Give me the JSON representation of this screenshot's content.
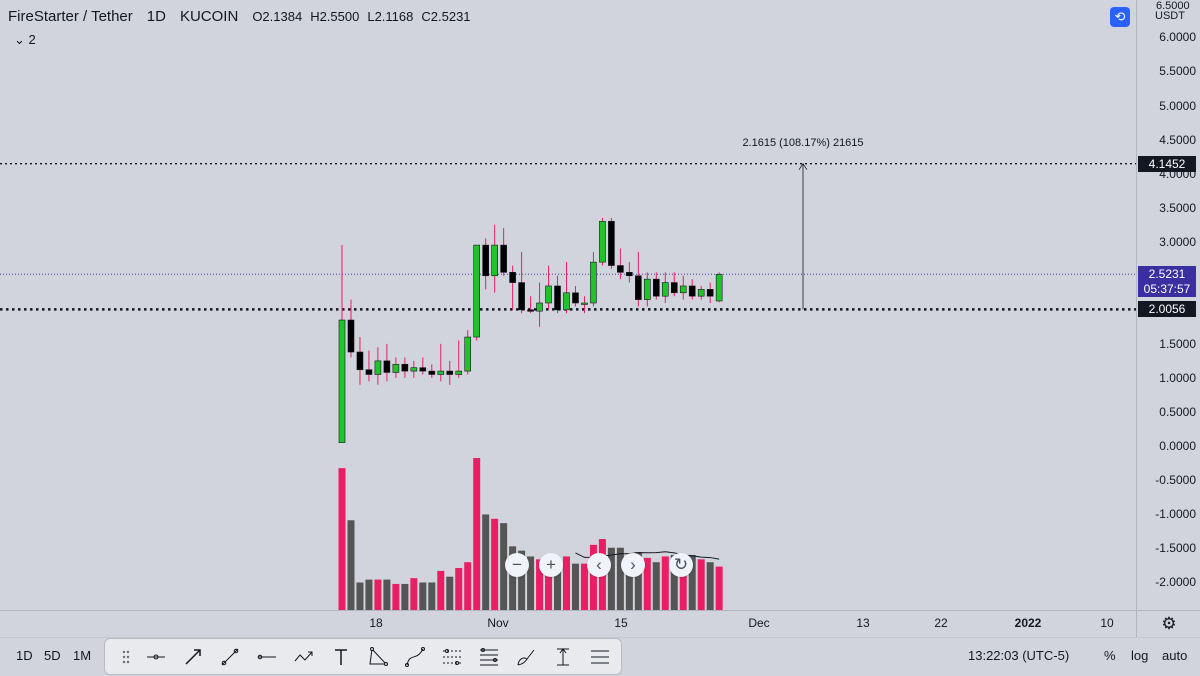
{
  "header": {
    "symbol": "FireStarter / Tether",
    "interval": "1D",
    "exchange": "KUCOIN",
    "ohlc": {
      "o": "O2.1384",
      "h": "H2.5500",
      "l": "L2.1168",
      "c": "C2.5231"
    },
    "indicator_count": "2"
  },
  "price_axis": {
    "currency": "USDT",
    "top_label": "6.5000",
    "labels": [
      "6.0000",
      "5.5000",
      "5.0000",
      "4.5000",
      "4.0000",
      "3.5000",
      "3.0000",
      "2.5000",
      "2.0000",
      "1.5000",
      "1.0000",
      "0.5000",
      "0.0000",
      "-0.5000",
      "-1.0000",
      "-1.5000",
      "-2.0000"
    ],
    "tags": {
      "level_upper": "4.1452",
      "last_price": "2.5231",
      "countdown": "05:37:57",
      "level_lower": "2.0056"
    }
  },
  "measure": {
    "text": "2.1615 (108.17%) 21615"
  },
  "time_axis": {
    "labels": [
      {
        "text": "18",
        "bold": false
      },
      {
        "text": "Nov",
        "bold": false
      },
      {
        "text": "15",
        "bold": false
      },
      {
        "text": "Dec",
        "bold": false
      },
      {
        "text": "13",
        "bold": false
      },
      {
        "text": "22",
        "bold": false
      },
      {
        "text": "2022",
        "bold": true
      },
      {
        "text": "10",
        "bold": false
      }
    ]
  },
  "colors": {
    "up": "#22c32a",
    "down": "#000000",
    "wick_up": "#e91e63",
    "volume_up": "#e91e63",
    "volume_down": "#555555",
    "accent": "#2962ff",
    "last_price_tag": "#3a2fa0"
  },
  "bottom_bar": {
    "timeframes": [
      "1D",
      "5D",
      "1M"
    ],
    "clock": "13:22:03 (UTC-5)",
    "percent": "%",
    "log": "log",
    "auto": "auto"
  },
  "toolbar": {
    "tools": [
      "drag-handle-icon",
      "horizontal-ray-icon",
      "arrow-line-icon",
      "trend-line-icon",
      "horizontal-line-icon",
      "path-icon",
      "text-icon",
      "triangle-icon",
      "curve-icon",
      "pitchfork-icon",
      "fib-retracement-icon",
      "brush-icon",
      "price-range-icon",
      "gann-box-icon"
    ]
  },
  "chart_data": {
    "type": "candlestick",
    "ylim": [
      -2.3,
      6.5
    ],
    "candles": [
      {
        "o": 0.05,
        "h": 2.95,
        "l": 0.05,
        "c": 1.85,
        "v": 0.98
      },
      {
        "o": 1.85,
        "h": 2.15,
        "l": 1.3,
        "c": 1.38,
        "v": 0.62
      },
      {
        "o": 1.38,
        "h": 1.6,
        "l": 0.9,
        "c": 1.12,
        "v": 0.19
      },
      {
        "o": 1.12,
        "h": 1.4,
        "l": 0.95,
        "c": 1.05,
        "v": 0.21
      },
      {
        "o": 1.05,
        "h": 1.45,
        "l": 0.9,
        "c": 1.25,
        "v": 0.21
      },
      {
        "o": 1.25,
        "h": 1.5,
        "l": 0.95,
        "c": 1.08,
        "v": 0.21
      },
      {
        "o": 1.08,
        "h": 1.3,
        "l": 1.0,
        "c": 1.2,
        "v": 0.18
      },
      {
        "o": 1.2,
        "h": 1.3,
        "l": 1.0,
        "c": 1.1,
        "v": 0.18
      },
      {
        "o": 1.1,
        "h": 1.25,
        "l": 1.0,
        "c": 1.15,
        "v": 0.22
      },
      {
        "o": 1.15,
        "h": 1.3,
        "l": 1.05,
        "c": 1.1,
        "v": 0.19
      },
      {
        "o": 1.1,
        "h": 1.2,
        "l": 1.0,
        "c": 1.05,
        "v": 0.19
      },
      {
        "o": 1.05,
        "h": 1.5,
        "l": 0.95,
        "c": 1.1,
        "v": 0.27
      },
      {
        "o": 1.1,
        "h": 1.25,
        "l": 0.9,
        "c": 1.05,
        "v": 0.23
      },
      {
        "o": 1.05,
        "h": 1.55,
        "l": 1.0,
        "c": 1.1,
        "v": 0.29
      },
      {
        "o": 1.1,
        "h": 1.7,
        "l": 1.05,
        "c": 1.6,
        "v": 0.33
      },
      {
        "o": 1.6,
        "h": 2.95,
        "l": 1.55,
        "c": 2.95,
        "v": 1.05
      },
      {
        "o": 2.95,
        "h": 3.05,
        "l": 2.3,
        "c": 2.5,
        "v": 0.66
      },
      {
        "o": 2.5,
        "h": 3.25,
        "l": 2.25,
        "c": 2.95,
        "v": 0.63
      },
      {
        "o": 2.95,
        "h": 3.2,
        "l": 2.5,
        "c": 2.55,
        "v": 0.6
      },
      {
        "o": 2.55,
        "h": 2.65,
        "l": 2.0,
        "c": 2.4,
        "v": 0.44
      },
      {
        "o": 2.4,
        "h": 2.85,
        "l": 1.95,
        "c": 2.0,
        "v": 0.41
      },
      {
        "o": 2.0,
        "h": 2.2,
        "l": 1.95,
        "c": 1.98,
        "v": 0.37
      },
      {
        "o": 1.98,
        "h": 2.4,
        "l": 1.75,
        "c": 2.1,
        "v": 0.35
      },
      {
        "o": 2.1,
        "h": 2.65,
        "l": 2.0,
        "c": 2.35,
        "v": 0.36
      },
      {
        "o": 2.35,
        "h": 2.5,
        "l": 1.95,
        "c": 2.0,
        "v": 0.33
      },
      {
        "o": 2.0,
        "h": 2.7,
        "l": 1.95,
        "c": 2.25,
        "v": 0.37
      },
      {
        "o": 2.25,
        "h": 2.35,
        "l": 2.05,
        "c": 2.1,
        "v": 0.32
      },
      {
        "o": 2.1,
        "h": 2.2,
        "l": 1.95,
        "c": 2.1,
        "v": 0.32
      },
      {
        "o": 2.1,
        "h": 2.85,
        "l": 2.05,
        "c": 2.7,
        "v": 0.45
      },
      {
        "o": 2.7,
        "h": 3.35,
        "l": 2.65,
        "c": 3.3,
        "v": 0.49
      },
      {
        "o": 3.3,
        "h": 3.35,
        "l": 2.6,
        "c": 2.65,
        "v": 0.43
      },
      {
        "o": 2.65,
        "h": 2.9,
        "l": 2.45,
        "c": 2.55,
        "v": 0.43
      },
      {
        "o": 2.55,
        "h": 2.7,
        "l": 2.4,
        "c": 2.5,
        "v": 0.36
      },
      {
        "o": 2.5,
        "h": 2.85,
        "l": 2.05,
        "c": 2.15,
        "v": 0.4
      },
      {
        "o": 2.15,
        "h": 2.55,
        "l": 2.05,
        "c": 2.45,
        "v": 0.36
      },
      {
        "o": 2.45,
        "h": 2.55,
        "l": 2.15,
        "c": 2.2,
        "v": 0.33
      },
      {
        "o": 2.2,
        "h": 2.55,
        "l": 2.1,
        "c": 2.4,
        "v": 0.37
      },
      {
        "o": 2.4,
        "h": 2.55,
        "l": 2.2,
        "c": 2.25,
        "v": 0.38
      },
      {
        "o": 2.25,
        "h": 2.5,
        "l": 2.15,
        "c": 2.35,
        "v": 0.36
      },
      {
        "o": 2.35,
        "h": 2.45,
        "l": 2.15,
        "c": 2.2,
        "v": 0.38
      },
      {
        "o": 2.2,
        "h": 2.35,
        "l": 2.15,
        "c": 2.3,
        "v": 0.35
      },
      {
        "o": 2.3,
        "h": 2.4,
        "l": 2.1,
        "c": 2.2,
        "v": 0.33
      },
      {
        "o": 2.13,
        "h": 2.55,
        "l": 2.11,
        "c": 2.52,
        "v": 0.3
      }
    ],
    "levels": [
      4.1452,
      2.0056
    ],
    "last_price": 2.5231
  }
}
